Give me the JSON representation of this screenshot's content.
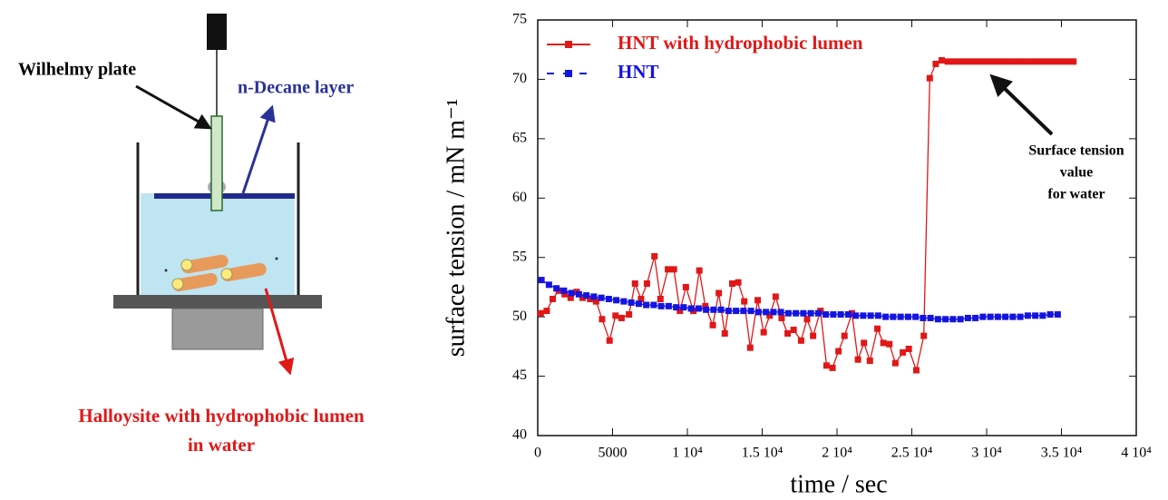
{
  "diagram": {
    "labels": [
      "Wilhelmy plate",
      "n-Decane layer",
      "Halloysite with hydrophobic lumen",
      "in water"
    ]
  },
  "chart_data": {
    "type": "line",
    "xlabel": "time / sec",
    "ylabel": "surface tension / mN m⁻¹",
    "xlim": [
      0,
      40000
    ],
    "ylim": [
      40,
      75
    ],
    "xticks": [
      0,
      5000,
      {
        "value": 10000,
        "label": "1 10⁴"
      },
      {
        "value": 15000,
        "label": "1.5 10⁴"
      },
      {
        "value": 20000,
        "label": "2 10⁴"
      },
      {
        "value": 25000,
        "label": "2.5 10⁴"
      },
      {
        "value": 30000,
        "label": "3 10⁴"
      },
      {
        "value": 35000,
        "label": "3.5 10⁴"
      },
      {
        "value": 40000,
        "label": "4 10⁴"
      }
    ],
    "yticks": [
      40,
      45,
      50,
      55,
      60,
      65,
      70,
      75
    ],
    "legend": "upper left",
    "annotation": [
      "Surface tension",
      "value",
      "for water"
    ],
    "series": [
      {
        "name": "HNT with hydrophobic lumen",
        "color": "#e01818",
        "x": [
          200,
          600,
          1000,
          1400,
          1800,
          2200,
          2600,
          3000,
          3500,
          3900,
          4300,
          4800,
          5200,
          5600,
          6100,
          6500,
          6900,
          7300,
          7800,
          8200,
          8700,
          9100,
          9500,
          9900,
          10400,
          10800,
          11200,
          11700,
          12100,
          12500,
          13000,
          13400,
          13800,
          14200,
          14700,
          15100,
          15500,
          15900,
          16300,
          16700,
          17100,
          17600,
          18000,
          18400,
          18900,
          19300,
          19700,
          20100,
          20500,
          21000,
          21400,
          21800,
          22200,
          22700,
          23100,
          23500,
          23900,
          24400,
          24800,
          25300,
          25800,
          26200,
          26600,
          27000,
          27400,
          27800,
          28200,
          28600,
          29000,
          29400,
          29800,
          30200,
          30600,
          31000,
          31400,
          31800,
          32200,
          32600,
          33000,
          33400,
          33800,
          34200,
          34600,
          35000,
          35400,
          35800
        ],
        "values": [
          50.3,
          50.5,
          51.5,
          52.2,
          51.9,
          51.6,
          52.1,
          51.6,
          51.5,
          51.3,
          49.8,
          48.0,
          50.1,
          49.9,
          50.2,
          52.8,
          51.5,
          52.8,
          55.1,
          51.5,
          54.0,
          54.0,
          50.5,
          52.5,
          50.5,
          53.9,
          50.9,
          49.3,
          52.0,
          48.6,
          52.8,
          52.9,
          51.3,
          47.4,
          51.4,
          48.7,
          50.1,
          51.7,
          49.9,
          48.6,
          48.9,
          48.0,
          49.8,
          48.4,
          50.5,
          45.9,
          45.7,
          47.1,
          48.4,
          50.3,
          46.4,
          47.8,
          46.3,
          49.0,
          47.8,
          47.7,
          46.1,
          47.0,
          47.3,
          45.5,
          48.4,
          70.1,
          71.3,
          71.6,
          71.5,
          71.5,
          71.5,
          71.5,
          71.5,
          71.5,
          71.5,
          71.5,
          71.5,
          71.5,
          71.5,
          71.5,
          71.5,
          71.5,
          71.5,
          71.5,
          71.5,
          71.5,
          71.5,
          71.5,
          71.5,
          71.5
        ]
      },
      {
        "name": "HNT",
        "color": "#1414e0",
        "x": [
          250,
          750,
          1250,
          1750,
          2250,
          2750,
          3250,
          3750,
          4250,
          4750,
          5250,
          5750,
          6250,
          6750,
          7250,
          7750,
          8250,
          8750,
          9250,
          9750,
          10250,
          10750,
          11250,
          11750,
          12250,
          12750,
          13250,
          13750,
          14250,
          14750,
          15250,
          15750,
          16250,
          16750,
          17250,
          17750,
          18250,
          18750,
          19250,
          19750,
          20250,
          20750,
          21250,
          21750,
          22250,
          22750,
          23250,
          23750,
          24250,
          24750,
          25250,
          25750,
          26250,
          26750,
          27250,
          27750,
          28250,
          28750,
          29250,
          29750,
          30250,
          30750,
          31250,
          31750,
          32250,
          32750,
          33250,
          33750,
          34250,
          34750
        ],
        "values": [
          53.1,
          52.7,
          52.4,
          52.2,
          52.0,
          51.9,
          51.8,
          51.7,
          51.6,
          51.5,
          51.4,
          51.3,
          51.2,
          51.1,
          51.0,
          51.0,
          50.9,
          50.9,
          50.8,
          50.8,
          50.7,
          50.7,
          50.6,
          50.6,
          50.6,
          50.5,
          50.5,
          50.5,
          50.5,
          50.4,
          50.4,
          50.4,
          50.4,
          50.3,
          50.3,
          50.3,
          50.3,
          50.3,
          50.2,
          50.2,
          50.2,
          50.2,
          50.1,
          50.1,
          50.1,
          50.1,
          50.0,
          50.0,
          50.0,
          50.0,
          50.0,
          49.9,
          49.9,
          49.8,
          49.8,
          49.8,
          49.8,
          49.9,
          49.9,
          50.0,
          50.0,
          50.0,
          50.0,
          50.0,
          50.0,
          50.1,
          50.1,
          50.1,
          50.2,
          50.2
        ]
      }
    ]
  }
}
